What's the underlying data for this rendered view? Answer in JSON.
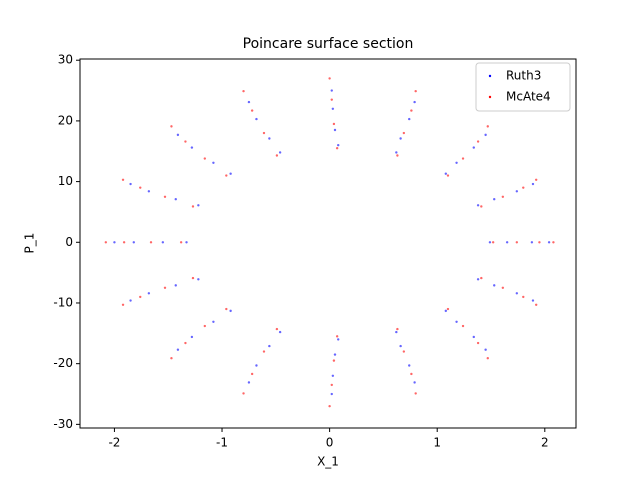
{
  "chart_data": {
    "type": "scatter",
    "title": "Poincare surface section",
    "x_label": "X_1",
    "y_label": "P_1",
    "xlim": [
      -2.32,
      2.29
    ],
    "ylim": [
      -30.6,
      30.2
    ],
    "xticks": [
      -2,
      -1,
      0,
      1,
      2
    ],
    "yticks": [
      -30,
      -20,
      -10,
      0,
      10,
      20,
      30
    ],
    "legend": "upper right",
    "series": [
      {
        "name": "Ruth3",
        "color": "blue",
        "x": [
          1.49,
          1.38,
          1.08,
          0.62,
          0.08,
          -0.46,
          -0.92,
          -1.22,
          -1.33,
          -1.22,
          -0.92,
          -0.46,
          0.08,
          0.62,
          1.08,
          1.38,
          1.65,
          1.53,
          1.18,
          0.66,
          0.05,
          -0.56,
          -1.08,
          -1.43,
          -1.55,
          -1.43,
          -1.08,
          -0.56,
          0.05,
          0.66,
          1.18,
          1.53,
          1.88,
          1.74,
          1.34,
          0.74,
          0.03,
          -0.68,
          -1.28,
          -1.68,
          -1.82,
          -1.68,
          -1.28,
          -0.68,
          0.03,
          0.74,
          1.34,
          1.74,
          2.04,
          1.89,
          1.45,
          0.79,
          0.02,
          -0.75,
          -1.41,
          -1.85,
          -2.0,
          -1.85,
          -1.41,
          -0.75,
          0.02,
          0.79,
          1.45,
          1.89
        ],
        "values": [
          0,
          6.1,
          11.3,
          14.8,
          16,
          14.8,
          11.3,
          6.1,
          0,
          -6.1,
          -11.3,
          -14.8,
          -16,
          -14.8,
          -11.3,
          -6.1,
          0,
          7.1,
          13.1,
          17.1,
          18.5,
          17.1,
          13.1,
          7.1,
          0,
          -7.1,
          -13.1,
          -17.1,
          -18.5,
          -17.1,
          -13.1,
          -7.1,
          0,
          8.4,
          15.6,
          20.3,
          22,
          20.3,
          15.6,
          8.4,
          0,
          -8.4,
          -15.6,
          -20.3,
          -22,
          -20.3,
          -15.6,
          -8.4,
          0,
          9.6,
          17.7,
          23.1,
          25,
          23.1,
          17.7,
          9.6,
          0,
          -9.6,
          -17.7,
          -23.1,
          -25,
          -23.1,
          -17.7,
          -9.6
        ]
      },
      {
        "name": "McAte4",
        "color": "red",
        "x": [
          1.52,
          1.41,
          1.1,
          0.63,
          0.07,
          -0.49,
          -0.96,
          -1.27,
          -1.38,
          -1.27,
          -0.96,
          -0.49,
          0.07,
          0.63,
          1.1,
          1.41,
          1.74,
          1.61,
          1.24,
          0.69,
          0.04,
          -0.61,
          -1.16,
          -1.53,
          -1.66,
          -1.53,
          -1.16,
          -0.61,
          0.04,
          0.69,
          1.24,
          1.61,
          1.95,
          1.8,
          1.38,
          0.76,
          0.02,
          -0.72,
          -1.34,
          -1.76,
          -1.91,
          -1.76,
          -1.34,
          -0.72,
          0.02,
          0.76,
          1.38,
          1.8,
          2.08,
          1.92,
          1.47,
          0.8,
          0,
          -0.8,
          -1.47,
          -1.92,
          -2.08,
          -1.92,
          -1.47,
          -0.8,
          0,
          0.8,
          1.47,
          1.92
        ],
        "values": [
          0,
          5.9,
          11.0,
          14.3,
          15.5,
          14.3,
          11.0,
          5.9,
          0,
          -5.9,
          -11.0,
          -14.3,
          -15.5,
          -14.3,
          -11.0,
          -5.9,
          0,
          7.5,
          13.8,
          18.0,
          19.5,
          18.0,
          13.8,
          7.5,
          0,
          -7.5,
          -13.8,
          -18.0,
          -19.5,
          -18.0,
          -13.8,
          -7.5,
          0,
          9.0,
          16.6,
          21.7,
          23.5,
          21.7,
          16.6,
          9.0,
          0,
          -9.0,
          -16.6,
          -21.7,
          -23.5,
          -21.7,
          -16.6,
          -9.0,
          0,
          10.3,
          19.1,
          24.9,
          27,
          24.9,
          19.1,
          10.3,
          0,
          -10.3,
          -19.1,
          -24.9,
          -27,
          -24.9,
          -19.1,
          -10.3
        ]
      }
    ]
  }
}
